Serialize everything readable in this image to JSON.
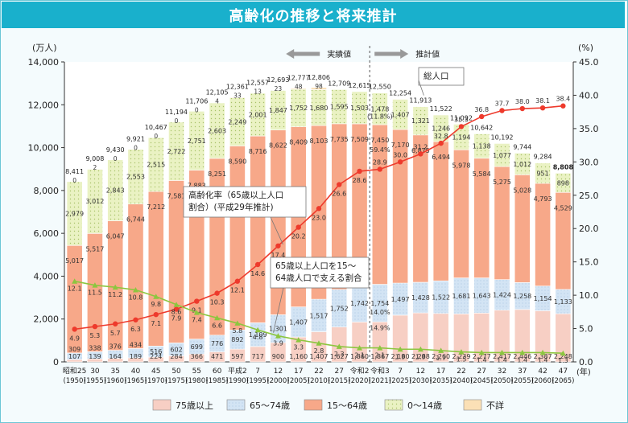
{
  "title": "高齢化の推移と将来推計",
  "chart_data": {
    "type": "bar",
    "title": "高齢化の推移と将来推計",
    "y_left_unit": "(万人)",
    "y_right_unit": "(%)",
    "x_unit": "(年)",
    "ylim_left": [
      0,
      14000
    ],
    "ylim_right": [
      0,
      45
    ],
    "left_ticks": [
      "0",
      "2,000",
      "4,000",
      "6,000",
      "8,000",
      "10,000",
      "12,000",
      "14,000"
    ],
    "right_ticks": [
      "0.0",
      "5.0",
      "10.0",
      "15.0",
      "20.0",
      "25.0",
      "30.0",
      "35.0",
      "40.0",
      "45.0"
    ],
    "categories_era": [
      "昭和25",
      "30",
      "35",
      "40",
      "45",
      "50",
      "55",
      "60",
      "平成2",
      "7",
      "12",
      "17",
      "22",
      "27",
      "令和2",
      "令和3",
      "7",
      "12",
      "17",
      "22",
      "27",
      "32",
      "37",
      "42",
      "47"
    ],
    "categories_year": [
      "(1950)",
      "(1955)",
      "(1960)",
      "(1965)",
      "(1970)",
      "(1975)",
      "(1980)",
      "(1985)",
      "(1990)",
      "(1995)",
      "(2000)",
      "(2005)",
      "(2010)",
      "(2015)",
      "(2020)",
      "(2021)",
      "(2025)",
      "(2030)",
      "(2035)",
      "(2040)",
      "(2045)",
      "(2050)",
      "(2055)",
      "(2060)",
      "(2065)"
    ],
    "series": [
      {
        "name": "75歳以上",
        "color": "#f7cfc4",
        "values": [
          107,
          139,
          164,
          189,
          224,
          284,
          366,
          471,
          597,
          717,
          900,
          1160,
          1407,
          1627,
          1860,
          1867,
          2180,
          2288,
          2260,
          2239,
          2277,
          2417,
          2446,
          2387,
          2248
        ]
      },
      {
        "name": "65〜74歳",
        "color": "#cfe1f3",
        "values": [
          309,
          338,
          376,
          434,
          516,
          602,
          699,
          776,
          892,
          1109,
          1301,
          1407,
          1517,
          1752,
          1742,
          1754,
          1497,
          1428,
          1522,
          1681,
          1643,
          1424,
          1258,
          1154,
          1133
        ]
      },
      {
        "name": "15〜64歳",
        "color": "#f7a889",
        "values": [
          5017,
          5517,
          6047,
          6744,
          7212,
          7581,
          7883,
          8251,
          8590,
          8716,
          8622,
          8409,
          8103,
          7735,
          7509,
          7450,
          7170,
          6875,
          6494,
          5978,
          5584,
          5275,
          5028,
          4793,
          4529
        ]
      },
      {
        "name": "0〜14歳",
        "color": "#e8f1bd",
        "values": [
          2979,
          3012,
          2843,
          2553,
          2515,
          2722,
          2751,
          2603,
          2249,
          2001,
          1847,
          1752,
          1680,
          1595,
          1503,
          1478,
          1407,
          1321,
          1246,
          1194,
          1138,
          1077,
          1012,
          951,
          898
        ]
      },
      {
        "name": "不詳",
        "color": "#fbe0b6",
        "values": [
          0,
          2,
          0,
          0,
          0,
          0,
          0,
          4,
          33,
          13,
          23,
          48,
          98,
          0,
          0,
          0,
          0,
          0,
          0,
          0,
          0,
          0,
          0,
          0,
          0
        ]
      }
    ],
    "totals": [
      "8,411",
      "9,008",
      "9,430",
      "9,921",
      "10,467",
      "11,194",
      "11,706",
      "12,105",
      "12,361",
      "12,557",
      "12,693",
      "12,777",
      "12,806",
      "12,709",
      "12,615",
      "12,550",
      "12,254",
      "11,913",
      "11,522",
      "11,092",
      "10,642",
      "10,192",
      "9,744",
      "9,284",
      "8,808"
    ],
    "labels_75": [
      "107",
      "139",
      "164",
      "189",
      "224",
      "284",
      "366",
      "471",
      "597",
      "717",
      "900",
      "1,160",
      "1,407",
      "1,627",
      "1,860",
      "1,867",
      "2,180",
      "2,288",
      "2,260",
      "2,239",
      "2,277",
      "2,417",
      "2,446",
      "2,387",
      "2,248"
    ],
    "labels_65_74": [
      "309",
      "338",
      "376",
      "434",
      "516",
      "602",
      "699",
      "776",
      "892",
      "1,109",
      "1,301",
      "1,407",
      "1,517",
      "1,752",
      "1,742",
      "1,754",
      "1,497",
      "1,428",
      "1,522",
      "1,681",
      "1,643",
      "1,424",
      "1,258",
      "1,154",
      "1,133"
    ],
    "labels_15_64": [
      "5,017",
      "5,517",
      "6,047",
      "6,744",
      "7,212",
      "7,581",
      "7,883",
      "8,251",
      "8,590",
      "8,716",
      "8,622",
      "8,409",
      "8,103",
      "7,735",
      "7,509",
      "7,450",
      "7,170",
      "6,875",
      "6,494",
      "5,978",
      "5,584",
      "5,275",
      "5,028",
      "4,793",
      "4,529"
    ],
    "labels_0_14": [
      "2,979",
      "3,012",
      "2,843",
      "2,553",
      "2,515",
      "2,722",
      "2,751",
      "2,603",
      "2,249",
      "2,001",
      "1,847",
      "1,752",
      "1,680",
      "1,595",
      "1,503",
      "1,478",
      "1,407",
      "1,321",
      "1,246",
      "1,194",
      "1,138",
      "1,077",
      "1,012",
      "951",
      "898"
    ],
    "labels_unknown": [
      "0",
      "2",
      "0",
      "0",
      "0",
      "0",
      "0",
      "4",
      "33",
      "13",
      "23",
      "48",
      "98",
      "",
      "",
      "",
      "",
      "",
      "",
      "",
      "",
      "",
      "",
      "",
      ""
    ],
    "aging_rate": {
      "name": "高齢化率（65歳以上人口割合）(平成29年推計)",
      "values": [
        4.9,
        5.3,
        5.7,
        6.3,
        7.1,
        7.9,
        9.1,
        10.3,
        12.1,
        14.6,
        17.4,
        20.2,
        23.0,
        26.6,
        28.6,
        28.9,
        30.0,
        31.2,
        32.8,
        35.3,
        36.8,
        37.7,
        38.0,
        38.1,
        38.4
      ],
      "labels": [
        "4.9",
        "5.3",
        "5.7",
        "6.3",
        "7.1",
        "7.9",
        "9.1",
        "10.3",
        "12.1",
        "14.6",
        "17.4",
        "20.2",
        "23.0",
        "26.6",
        "28.6",
        "28.9",
        "30.0",
        "31.2",
        "32.8",
        "35.3",
        "36.8",
        "37.7",
        "38.0",
        "38.1",
        "38.4"
      ],
      "color": "#ee3a2c"
    },
    "support_ratio": {
      "name": "65歳以上人口を15〜64歳人口で支える割合",
      "values": [
        12.1,
        11.5,
        11.2,
        10.8,
        9.8,
        8.6,
        7.4,
        6.6,
        5.8,
        4.8,
        3.9,
        3.3,
        2.8,
        2.3,
        2.1,
        2.1,
        1.9,
        1.9,
        1.7,
        1.5,
        1.4,
        1.4,
        1.4,
        1.4,
        1.3
      ],
      "labels": [
        "12.1",
        "11.5",
        "11.2",
        "10.8",
        "9.8",
        "8.6",
        "7.4",
        "6.6",
        "5.8",
        "4.8",
        "3.9",
        "3.3",
        "2.8",
        "2.3",
        "2.1",
        "2.1",
        "1.9",
        "1.9",
        "1.7",
        "1.5",
        "1.4",
        "1.4",
        "1.4",
        "1.4",
        "1.3"
      ],
      "color": "#8cc63f"
    },
    "percent_labels_2021": {
      "rate_15_64": "59.4%",
      "rate_0_14": "11.8%",
      "rate_65_74": "14.0%",
      "rate_75": "14.9%"
    },
    "annotations": {
      "actual": "実績値",
      "projection": "推計値",
      "total_population": "総人口",
      "aging_rate_line1": "高齢化率（65歳以上人口",
      "aging_rate_line2": "割合）(平成29年推計)",
      "support_line1": "65歳以上人口を15〜",
      "support_line2": "64歳人口で支える割合"
    },
    "legend": [
      "75歳以上",
      "65〜74歳",
      "15〜64歳",
      "0〜14歳",
      "不詳"
    ],
    "legend_position": "bottom",
    "grid": false
  }
}
